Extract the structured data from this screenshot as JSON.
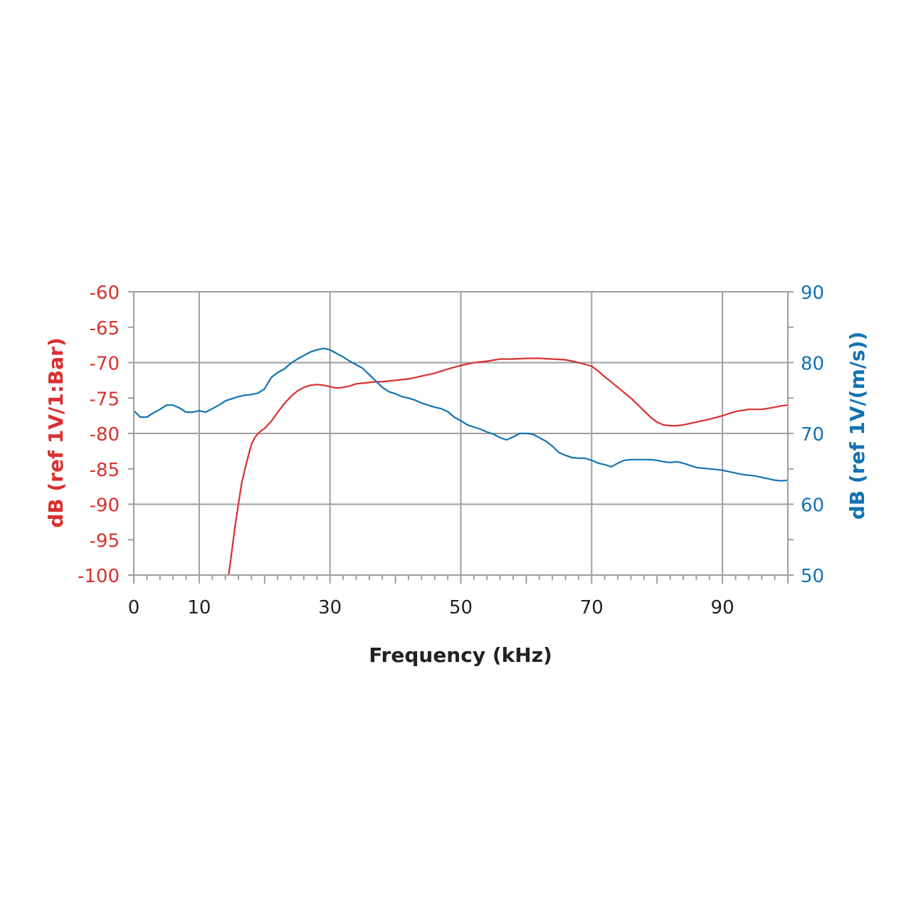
{
  "chart_data": {
    "type": "line",
    "title": "",
    "xlabel": "Frequency (kHz)",
    "ylabel_left": "dB (ref  1V/1:Bar)",
    "ylabel_right": "dB (ref 1V/(m/s))",
    "xlim": [
      0,
      100
    ],
    "ylim_left": [
      -100,
      -60
    ],
    "ylim_right": [
      50,
      90
    ],
    "x_tick_labels": [
      "0",
      "10",
      "30",
      "50",
      "70",
      "90"
    ],
    "x_tick_values": [
      0,
      10,
      30,
      50,
      70,
      90
    ],
    "x_grid": [
      10,
      30,
      50,
      70,
      90
    ],
    "x_minor_ticks": [
      20,
      40,
      60,
      80
    ],
    "y_left_ticks": [
      -60,
      -65,
      -70,
      -75,
      -80,
      -85,
      -90,
      -95,
      -100
    ],
    "y_left_tick_labels": [
      "-60",
      "-65",
      "-70",
      "-75",
      "-80",
      "-85",
      "-90",
      "-95",
      "-100"
    ],
    "y_right_ticks": [
      90,
      80,
      70,
      60,
      50
    ],
    "y_right_tick_labels": [
      "90",
      "80",
      "70",
      "60",
      "50"
    ],
    "grid": true,
    "colors": {
      "left": "#d8302f",
      "right": "#1273b2",
      "grid": "#9e9e9e",
      "text": "#222222"
    },
    "series": [
      {
        "axis": "left",
        "color": "#d8302f",
        "x": [
          14.5,
          15.0,
          15.5,
          16.0,
          16.5,
          17.0,
          17.5,
          18.0,
          18.5,
          19.0,
          19.5,
          20.0,
          21.0,
          22.0,
          23.0,
          24.0,
          25.0,
          26.0,
          27.0,
          28.0,
          29.0,
          30.0,
          31.0,
          32.0,
          33.0,
          34.0,
          35.0,
          36.0,
          37.0,
          38.0,
          39.0,
          40.0,
          42.0,
          44.0,
          46.0,
          48.0,
          50.0,
          52.0,
          54.0,
          56.0,
          58.0,
          60.0,
          62.0,
          64.0,
          66.0,
          68.0,
          70.0,
          71.0,
          72.0,
          74.0,
          76.0,
          78.0,
          79.0,
          80.0,
          81.0,
          82.0,
          83.0,
          84.0,
          86.0,
          88.0,
          90.0,
          91.0,
          92.0,
          94.0,
          96.0,
          98.0,
          99.0,
          100.0
        ],
        "values": [
          -100.0,
          -96.5,
          -93.0,
          -90.0,
          -87.0,
          -85.0,
          -83.2,
          -81.5,
          -80.6,
          -80.0,
          -79.6,
          -79.3,
          -78.3,
          -77.0,
          -75.8,
          -74.8,
          -74.0,
          -73.5,
          -73.2,
          -73.1,
          -73.2,
          -73.4,
          -73.6,
          -73.5,
          -73.3,
          -73.0,
          -72.9,
          -72.8,
          -72.7,
          -72.7,
          -72.6,
          -72.5,
          -72.3,
          -71.9,
          -71.5,
          -70.9,
          -70.4,
          -70.0,
          -69.8,
          -69.5,
          -69.5,
          -69.4,
          -69.4,
          -69.5,
          -69.6,
          -70.0,
          -70.5,
          -71.2,
          -72.0,
          -73.5,
          -75.0,
          -76.8,
          -77.7,
          -78.4,
          -78.8,
          -78.9,
          -78.9,
          -78.8,
          -78.4,
          -78.0,
          -77.5,
          -77.2,
          -76.9,
          -76.6,
          -76.6,
          -76.3,
          -76.1,
          -76.0
        ],
        "name": ""
      },
      {
        "axis": "right",
        "color": "#1273b2",
        "x": [
          0,
          1,
          2,
          3,
          4,
          5,
          6,
          7,
          8,
          9,
          10,
          11,
          12,
          13,
          14,
          15,
          16,
          17,
          18,
          19,
          20,
          21,
          22,
          23,
          24,
          25,
          26,
          27,
          28,
          29,
          30,
          31,
          32,
          33,
          34,
          35,
          36,
          37,
          38,
          39,
          40,
          41,
          42,
          43,
          44,
          45,
          46,
          47,
          48,
          49,
          50,
          51,
          52,
          53,
          54,
          55,
          56,
          57,
          58,
          59,
          60,
          61,
          62,
          63,
          64,
          65,
          66,
          67,
          68,
          69,
          70,
          71,
          72,
          73,
          74,
          75,
          76,
          77,
          78,
          79,
          80,
          81,
          82,
          83,
          84,
          85,
          86,
          87,
          88,
          89,
          90,
          91,
          92,
          93,
          94,
          95,
          96,
          97,
          98,
          99,
          100
        ],
        "values": [
          73.2,
          72.3,
          72.3,
          72.9,
          73.4,
          74.0,
          74.0,
          73.6,
          73.0,
          73.0,
          73.2,
          73.0,
          73.5,
          74.0,
          74.6,
          74.9,
          75.2,
          75.4,
          75.5,
          75.7,
          76.3,
          77.9,
          78.6,
          79.1,
          79.9,
          80.5,
          81.0,
          81.5,
          81.8,
          82.0,
          81.8,
          81.3,
          80.8,
          80.2,
          79.7,
          79.2,
          78.3,
          77.4,
          76.5,
          75.9,
          75.6,
          75.2,
          75.0,
          74.7,
          74.3,
          74.0,
          73.7,
          73.5,
          73.1,
          72.3,
          71.8,
          71.2,
          70.9,
          70.6,
          70.2,
          69.9,
          69.4,
          69.1,
          69.5,
          70.0,
          70.0,
          69.9,
          69.4,
          68.9,
          68.2,
          67.3,
          66.9,
          66.6,
          66.5,
          66.5,
          66.2,
          65.8,
          65.6,
          65.3,
          65.8,
          66.2,
          66.3,
          66.3,
          66.3,
          66.3,
          66.2,
          66.0,
          65.9,
          66.0,
          65.8,
          65.5,
          65.2,
          65.1,
          65.0,
          64.9,
          64.8,
          64.6,
          64.4,
          64.2,
          64.1,
          64.0,
          63.8,
          63.6,
          63.4,
          63.3,
          63.4
        ],
        "name": ""
      }
    ]
  }
}
